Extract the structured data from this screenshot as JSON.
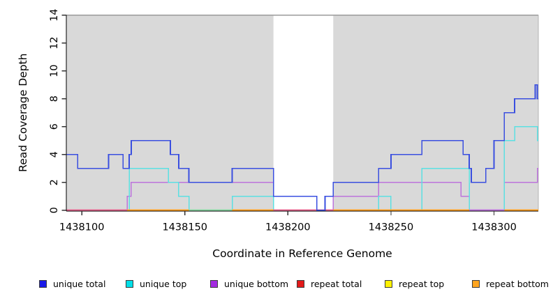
{
  "chart_data": {
    "type": "line",
    "subtype": "step-coverage-plot",
    "title": "",
    "xlabel": "Coordinate in Reference Genome",
    "ylabel": "Read Coverage Depth",
    "xlim": [
      1438092.5,
      1438321.5
    ],
    "ylim": [
      0,
      14
    ],
    "x_ticks": [
      1438100,
      1438150,
      1438200,
      1438250,
      1438300
    ],
    "y_ticks": [
      0,
      2,
      4,
      6,
      8,
      10,
      12,
      14
    ],
    "grid": false,
    "plot_background": "#d9d9d9",
    "uncovered_region": {
      "from": 1438193,
      "to": 1438222,
      "color": "#ffffff"
    },
    "series": [
      {
        "name": "repeat total",
        "color": "#dd2222",
        "width": 1.5,
        "steps": [
          [
            1438092.5,
            0
          ]
        ]
      },
      {
        "name": "repeat top",
        "color": "#ffe800",
        "width": 1.5,
        "steps": [
          [
            1438092.5,
            0
          ]
        ]
      },
      {
        "name": "repeat bottom",
        "color": "#ff9f1f",
        "width": 1.8,
        "steps": [
          [
            1438092.5,
            0
          ]
        ]
      },
      {
        "name": "unique bottom",
        "color": "#bd74dc",
        "width": 1.5,
        "steps": [
          [
            1438092.5,
            0
          ],
          [
            1438122,
            1
          ],
          [
            1438124,
            2
          ],
          [
            1438193,
            0
          ],
          [
            1438222,
            1
          ],
          [
            1438244,
            2
          ],
          [
            1438284,
            1
          ],
          [
            1438288,
            0
          ],
          [
            1438305,
            2
          ],
          [
            1438321,
            3
          ]
        ]
      },
      {
        "name": "unique top",
        "color": "#5ce0e2",
        "width": 1.5,
        "steps": [
          [
            1438092.5,
            0
          ],
          [
            1438123,
            3
          ],
          [
            1438142,
            2
          ],
          [
            1438147,
            1
          ],
          [
            1438152,
            0
          ],
          [
            1438173,
            1
          ],
          [
            1438193,
            0
          ],
          [
            1438244,
            1
          ],
          [
            1438250,
            0
          ],
          [
            1438265,
            3
          ],
          [
            1438288,
            0
          ],
          [
            1438305,
            5
          ],
          [
            1438310,
            6
          ],
          [
            1438321,
            5
          ]
        ]
      },
      {
        "name": "unique total",
        "color": "#3a4fe0",
        "width": 1.8,
        "steps": [
          [
            1438092.5,
            4
          ],
          [
            1438098,
            3
          ],
          [
            1438113,
            4
          ],
          [
            1438120,
            3
          ],
          [
            1438123,
            4
          ],
          [
            1438124,
            5
          ],
          [
            1438143,
            4
          ],
          [
            1438147,
            3
          ],
          [
            1438152,
            2
          ],
          [
            1438173,
            3
          ],
          [
            1438193,
            1
          ],
          [
            1438214,
            0
          ],
          [
            1438218,
            1
          ],
          [
            1438222,
            2
          ],
          [
            1438244,
            3
          ],
          [
            1438250,
            4
          ],
          [
            1438265,
            5
          ],
          [
            1438285,
            4
          ],
          [
            1438288,
            3
          ],
          [
            1438289,
            2
          ],
          [
            1438296,
            3
          ],
          [
            1438300,
            5
          ],
          [
            1438305,
            7
          ],
          [
            1438310,
            8
          ],
          [
            1438320,
            9
          ],
          [
            1438321,
            8
          ]
        ]
      }
    ],
    "baseline_color_segments": [
      {
        "from": 1438092.5,
        "to": 1438122,
        "color": "#e4648d"
      },
      {
        "from": 1438122,
        "to": 1438152,
        "color": "#ff9f1f"
      },
      {
        "from": 1438152,
        "to": 1438173,
        "color": "#8ad9a4"
      },
      {
        "from": 1438173,
        "to": 1438193,
        "color": "#ff9f1f"
      },
      {
        "from": 1438193,
        "to": 1438222,
        "color": "#e4648d"
      },
      {
        "from": 1438222,
        "to": 1438288,
        "color": "#ff9f1f"
      },
      {
        "from": 1438288,
        "to": 1438305,
        "color": "#bd74dc"
      },
      {
        "from": 1438305,
        "to": 1438321.5,
        "color": "#ff9f1f"
      }
    ],
    "legend": {
      "position": "bottom",
      "entries": [
        {
          "label": "unique total",
          "color": "#1a1ae8"
        },
        {
          "label": "unique top",
          "color": "#00dfe8"
        },
        {
          "label": "unique bottom",
          "color": "#a32ae0"
        },
        {
          "label": "repeat total",
          "color": "#e31a1a"
        },
        {
          "label": "repeat top",
          "color": "#fff200"
        },
        {
          "label": "repeat bottom",
          "color": "#ffa51f"
        }
      ]
    }
  }
}
